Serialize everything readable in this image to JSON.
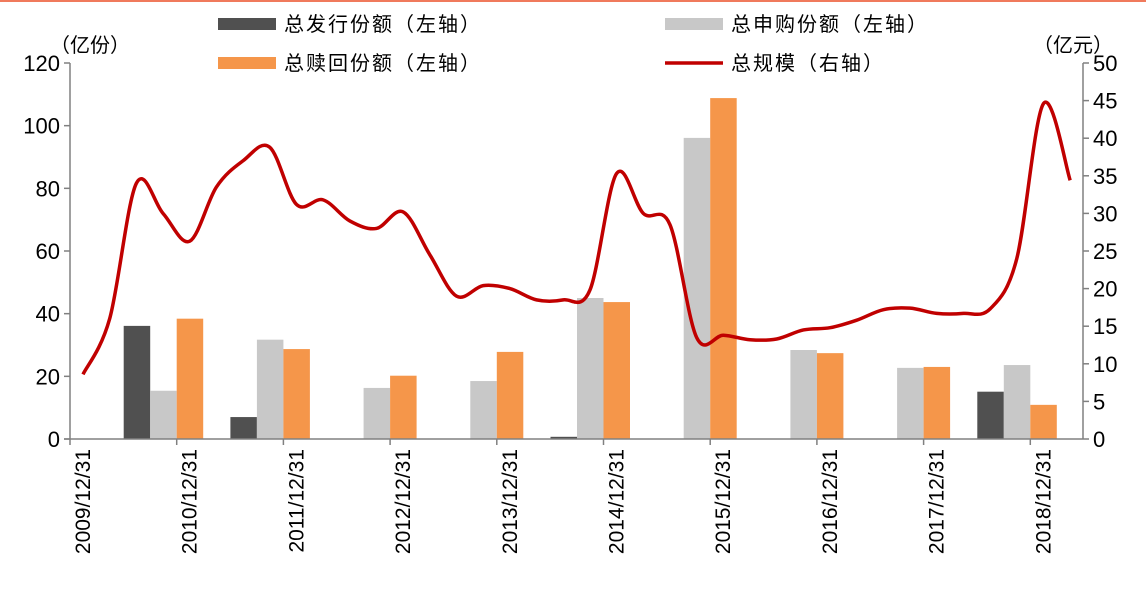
{
  "chart_data": {
    "type": "bar+line",
    "left_unit": "（亿份）",
    "right_unit": "（亿元）",
    "left_ylim": [
      0,
      120
    ],
    "left_ticks": [
      0,
      20,
      40,
      60,
      80,
      100,
      120
    ],
    "right_ylim": [
      0,
      50
    ],
    "right_ticks": [
      0,
      5,
      10,
      15,
      20,
      25,
      30,
      35,
      40,
      45,
      50
    ],
    "x_tick_labels": [
      "2009/12/31",
      "2010/12/31",
      "2011/12/31",
      "2012/12/31",
      "2013/12/31",
      "2014/12/31",
      "2015/12/31",
      "2016/12/31",
      "2017/12/31",
      "2018/12/31"
    ],
    "grid": false,
    "legend_position": "top",
    "bar_categories": [
      "2010/12/31",
      "2011/12/31",
      "2012/12/31",
      "2013/12/31",
      "2014/12/31",
      "2015/12/31",
      "2016/12/31",
      "2017/12/31",
      "2018/12/31"
    ],
    "bar_series": [
      {
        "name": "总发行份额（左轴）",
        "color": "#505050",
        "values": [
          36.1,
          7.0,
          0,
          0,
          0.7,
          0,
          0,
          0,
          15.1
        ]
      },
      {
        "name": "总申购份额（左轴）",
        "color": "#c8c8c8",
        "values": [
          15.4,
          31.7,
          16.3,
          18.5,
          45.0,
          96.1,
          28.4,
          22.7,
          23.6
        ]
      },
      {
        "name": "总赎回份额（左轴）",
        "color": "#f5964a",
        "values": [
          38.4,
          28.7,
          20.2,
          27.8,
          43.7,
          108.8,
          27.4,
          23.0,
          10.9
        ]
      }
    ],
    "line_series": {
      "name": "总规模（右轴）",
      "color": "#c00000",
      "x": [
        "2009/12/31",
        "2010/03/31",
        "2010/06/30",
        "2010/09/30",
        "2010/12/31",
        "2011/03/31",
        "2011/06/30",
        "2011/09/30",
        "2011/12/31",
        "2012/03/31",
        "2012/06/30",
        "2012/09/30",
        "2012/12/31",
        "2013/03/31",
        "2013/06/30",
        "2013/09/30",
        "2013/12/31",
        "2014/03/31",
        "2014/06/30",
        "2014/09/30",
        "2014/12/31",
        "2015/03/31",
        "2015/06/30",
        "2015/09/30",
        "2015/12/31",
        "2016/03/31",
        "2016/06/30",
        "2016/09/30",
        "2016/12/31",
        "2017/03/31",
        "2017/06/30",
        "2017/09/30",
        "2017/12/31",
        "2018/03/31",
        "2018/06/30",
        "2018/09/30",
        "2018/12/31",
        "2019/03/31"
      ],
      "values": [
        8.6,
        16,
        34,
        30,
        26.3,
        33.5,
        37,
        38.8,
        31.2,
        31.8,
        29,
        28,
        30.2,
        24.5,
        19,
        20.4,
        20,
        18.5,
        18.5,
        19.8,
        35.3,
        30,
        28.5,
        13.5,
        13.8,
        13.2,
        13.3,
        14.5,
        14.8,
        15.8,
        17.2,
        17.4,
        16.7,
        16.7,
        17.3,
        24,
        44.6,
        34.4
      ]
    }
  }
}
